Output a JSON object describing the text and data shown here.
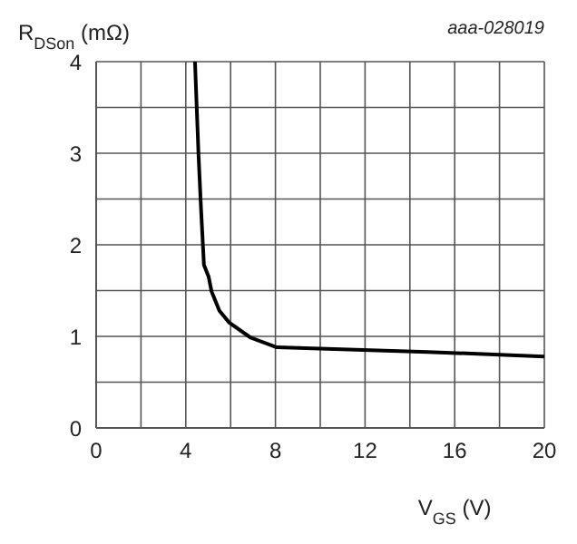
{
  "chart_data": {
    "type": "line",
    "xlabel": "V$_{GS}$ (V)",
    "ylabel": "R$_{DSon}$ (mΩ)",
    "annotations": [
      "aaa-028019"
    ],
    "series": [
      {
        "color": "#000000",
        "x": [
          4.41,
          4.57,
          4.68,
          4.81,
          5.02,
          5.15,
          5.5,
          5.94,
          6.87,
          8.06,
          14.8,
          20
        ],
        "values": [
          4,
          2.97,
          2.39,
          1.78,
          1.65,
          1.49,
          1.28,
          1.15,
          0.99,
          0.88,
          0.83,
          0.78
        ]
      }
    ],
    "xlim": [
      0,
      20
    ],
    "ylim": [
      0,
      4
    ],
    "xticks": [
      0,
      {
        "value": 2,
        "label": null
      },
      4,
      {
        "value": 6,
        "label": null
      },
      8,
      {
        "value": 10,
        "label": null
      },
      12,
      {
        "value": 14,
        "label": null
      },
      16,
      {
        "value": 18,
        "label": null
      },
      20
    ],
    "yticks": [
      0,
      {
        "value": 0.5,
        "label": null
      },
      1,
      {
        "value": 1.5,
        "label": null
      },
      2,
      {
        "value": 2.5,
        "label": null
      },
      3,
      {
        "value": 3.5,
        "label": null
      },
      4
    ],
    "grid": true,
    "marker": "none",
    "line_style": "solid"
  }
}
